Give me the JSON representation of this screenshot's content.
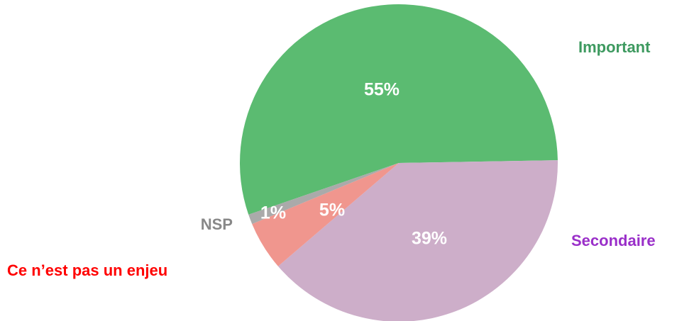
{
  "chart_data": {
    "type": "pie",
    "categories": [
      "Important",
      "Secondaire",
      "Ce n’est pas un enjeu",
      "NSP"
    ],
    "values": [
      55,
      39,
      5,
      1
    ],
    "value_labels": [
      "55%",
      "39%",
      "5%",
      "1%"
    ],
    "colors": [
      "#5bbb71",
      "#cdaec9",
      "#f0968e",
      "#aaaaaa"
    ],
    "label_colors": [
      "#3e9a60",
      "#9a2fc9",
      "#ff0000",
      "#888888"
    ]
  }
}
